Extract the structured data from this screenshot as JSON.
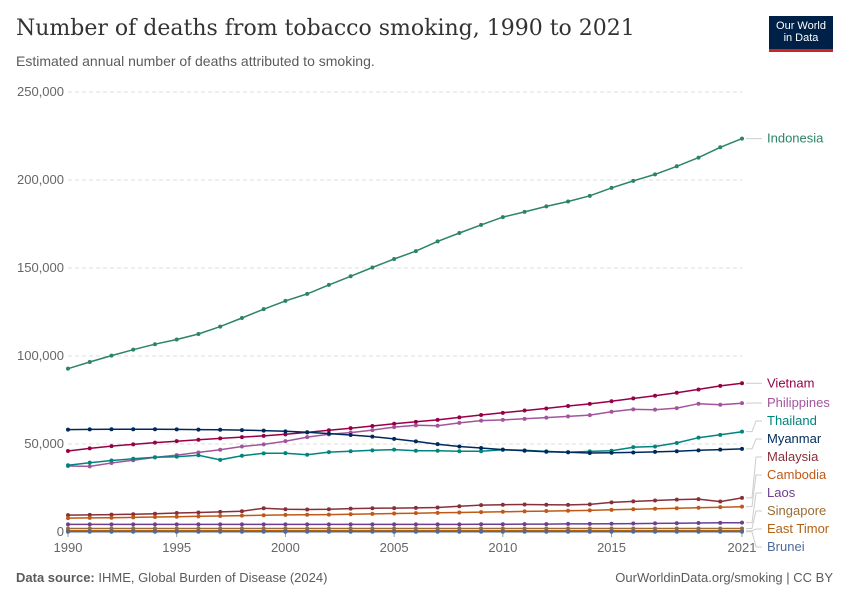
{
  "header": {
    "title": "Number of deaths from tobacco smoking, 1990 to 2021",
    "subtitle": "Estimated annual number of deaths attributed to smoking.",
    "logo_line1": "Our World",
    "logo_line2": "in Data"
  },
  "footer": {
    "source_label": "Data source:",
    "source_text": "IHME, Global Burden of Disease (2024)",
    "credit": "OurWorldinData.org/smoking | CC BY"
  },
  "chart_data": {
    "type": "line",
    "title": "Number of deaths from tobacco smoking, 1990 to 2021",
    "subtitle": "Estimated annual number of deaths attributed to smoking.",
    "ylim": [
      0,
      250000
    ],
    "y_ticks": [
      0,
      50000,
      100000,
      150000,
      200000,
      250000
    ],
    "y_tick_labels": [
      "0",
      "50,000",
      "100,000",
      "150,000",
      "200,000",
      "250,000"
    ],
    "x_ticks": [
      1990,
      1995,
      2000,
      2005,
      2010,
      2015,
      2021
    ],
    "x_tick_labels": [
      "1990",
      "1995",
      "2000",
      "2005",
      "2010",
      "2015",
      "2021"
    ],
    "grid": "horizontal dashed",
    "legend": "line labels at right end",
    "x": [
      1990,
      1991,
      1992,
      1993,
      1994,
      1995,
      1996,
      1997,
      1998,
      1999,
      2000,
      2001,
      2002,
      2003,
      2004,
      2005,
      2006,
      2007,
      2008,
      2009,
      2010,
      2011,
      2012,
      2013,
      2014,
      2015,
      2016,
      2017,
      2018,
      2019,
      2020,
      2021
    ],
    "series": [
      {
        "name": "Indonesia",
        "color": "#2c8465",
        "values": [
          92800,
          96600,
          100200,
          103600,
          106700,
          109400,
          112500,
          116700,
          121600,
          126600,
          131300,
          135300,
          140400,
          145300,
          150300,
          155100,
          159600,
          165100,
          169900,
          174500,
          178900,
          181900,
          185000,
          187800,
          191000,
          195500,
          199500,
          203200,
          207800,
          212700,
          218600,
          223500
        ]
      },
      {
        "name": "Vietnam",
        "color": "#970046",
        "values": [
          46000,
          47500,
          48800,
          49800,
          50800,
          51600,
          52400,
          53200,
          53900,
          54600,
          55500,
          56600,
          57800,
          59000,
          60200,
          61500,
          62600,
          63700,
          65100,
          66500,
          67700,
          69000,
          70200,
          71600,
          72800,
          74300,
          75900,
          77400,
          79100,
          81000,
          83000,
          84500
        ]
      },
      {
        "name": "Philippines",
        "color": "#a2559c",
        "values": [
          37500,
          37300,
          39200,
          40800,
          42400,
          43700,
          45200,
          46700,
          48600,
          49800,
          51600,
          53900,
          55500,
          56500,
          57900,
          59600,
          60600,
          60400,
          62000,
          63300,
          63700,
          64300,
          65000,
          65700,
          66400,
          68300,
          69700,
          69500,
          70400,
          72900,
          72300,
          73200
        ]
      },
      {
        "name": "Thailand",
        "color": "#00847e",
        "values": [
          37900,
          39400,
          40600,
          41600,
          42500,
          42800,
          43600,
          41000,
          43300,
          44700,
          44800,
          43900,
          45400,
          45900,
          46400,
          46800,
          46200,
          46200,
          45900,
          45900,
          46700,
          46400,
          45800,
          45300,
          45800,
          46200,
          48200,
          48600,
          50600,
          53600,
          55200,
          57000
        ]
      },
      {
        "name": "Myanmar",
        "color": "#00295b",
        "values": [
          58200,
          58300,
          58400,
          58400,
          58400,
          58300,
          58200,
          58100,
          57900,
          57600,
          57200,
          56700,
          55900,
          55100,
          54200,
          52900,
          51500,
          49900,
          48600,
          47700,
          46800,
          46200,
          45600,
          45300,
          44900,
          45000,
          45200,
          45500,
          45900,
          46400,
          46800,
          47200
        ]
      },
      {
        "name": "Malaysia",
        "color": "#883039",
        "values": [
          9600,
          9700,
          9900,
          10100,
          10400,
          10800,
          11100,
          11400,
          11800,
          13500,
          12900,
          12800,
          12900,
          13300,
          13500,
          13600,
          13700,
          13900,
          14600,
          15300,
          15500,
          15600,
          15500,
          15400,
          15700,
          16800,
          17400,
          17900,
          18400,
          18700,
          17300,
          19400
        ]
      },
      {
        "name": "Cambodia",
        "color": "#c05917",
        "values": [
          7900,
          8000,
          8100,
          8300,
          8500,
          8700,
          8900,
          9100,
          9300,
          9500,
          9700,
          9800,
          9900,
          10100,
          10300,
          10500,
          10700,
          10900,
          11100,
          11300,
          11500,
          11700,
          11900,
          12100,
          12300,
          12600,
          12900,
          13200,
          13500,
          13800,
          14100,
          14400
        ]
      },
      {
        "name": "Laos",
        "color": "#6d3e91",
        "values": [
          4300,
          4300,
          4300,
          4300,
          4300,
          4300,
          4300,
          4300,
          4300,
          4300,
          4300,
          4300,
          4300,
          4300,
          4300,
          4300,
          4300,
          4300,
          4300,
          4400,
          4400,
          4500,
          4500,
          4600,
          4600,
          4700,
          4800,
          4900,
          5000,
          5100,
          5200,
          5300
        ]
      },
      {
        "name": "Singapore",
        "color": "#996d39",
        "values": [
          2000,
          2000,
          2000,
          2000,
          2000,
          2000,
          2000,
          2000,
          2000,
          2000,
          2000,
          2000,
          2000,
          2000,
          2000,
          2000,
          2000,
          2000,
          2000,
          2000,
          2000,
          2000,
          2000,
          2000,
          2000,
          2000,
          2000,
          2000,
          2000,
          2000,
          2000,
          2000
        ]
      },
      {
        "name": "East Timor",
        "color": "#b16214",
        "values": [
          700,
          700,
          700,
          700,
          700,
          700,
          700,
          700,
          700,
          700,
          700,
          700,
          700,
          700,
          700,
          700,
          700,
          700,
          700,
          700,
          700,
          700,
          700,
          700,
          700,
          700,
          700,
          700,
          700,
          700,
          700,
          700
        ]
      },
      {
        "name": "Brunei",
        "color": "#4c6a9c",
        "values": [
          150,
          150,
          150,
          150,
          150,
          150,
          150,
          150,
          150,
          150,
          150,
          150,
          150,
          150,
          150,
          150,
          150,
          150,
          150,
          150,
          150,
          150,
          150,
          150,
          150,
          150,
          150,
          150,
          150,
          150,
          150,
          150
        ]
      }
    ]
  }
}
